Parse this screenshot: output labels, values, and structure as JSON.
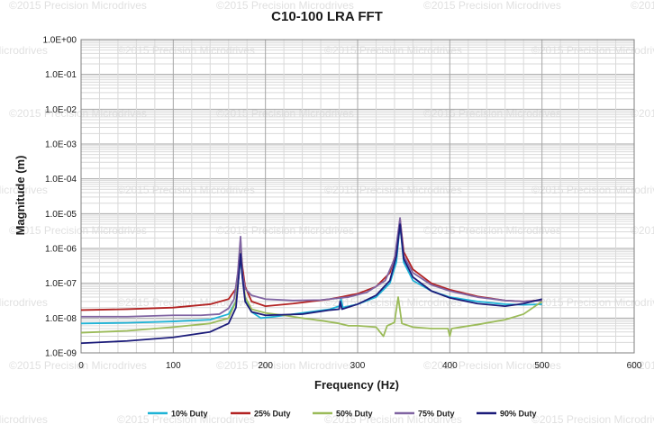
{
  "chart_data": {
    "type": "line",
    "title": "C10-100 LRA FFT",
    "xlabel": "Frequency (Hz)",
    "ylabel": "Magnitude (m)",
    "xlim": [
      0,
      600
    ],
    "ylim": [
      1e-09,
      1
    ],
    "yscale": "log",
    "grid": true,
    "legend_position": "bottom",
    "x_ticks": [
      "0",
      "100",
      "200",
      "300",
      "400",
      "500",
      "600"
    ],
    "y_ticks": [
      "1.0E-09",
      "1.0E-08",
      "1.0E-07",
      "1.0E-06",
      "1.0E-05",
      "1.0E-04",
      "1.0E-03",
      "1.0E-02",
      "1.0E-01",
      "1.0E+00"
    ],
    "watermark": "©2015 Precision Microdrives",
    "series": [
      {
        "name": "10% Duty",
        "color": "#1fb3d6",
        "points": [
          [
            0,
            7e-09
          ],
          [
            50,
            7.3e-09
          ],
          [
            100,
            8e-09
          ],
          [
            140,
            9e-09
          ],
          [
            160,
            1.3e-08
          ],
          [
            168,
            3e-08
          ],
          [
            171,
            1.5e-07
          ],
          [
            173,
            6e-07
          ],
          [
            175,
            1.5e-07
          ],
          [
            178,
            3.5e-08
          ],
          [
            185,
            1.5e-08
          ],
          [
            195,
            1e-08
          ],
          [
            210,
            1.1e-08
          ],
          [
            240,
            1.4e-08
          ],
          [
            270,
            1.8e-08
          ],
          [
            280,
            2.2e-08
          ],
          [
            282,
            3.5e-08
          ],
          [
            284,
            2e-08
          ],
          [
            300,
            2.5e-08
          ],
          [
            320,
            4e-08
          ],
          [
            335,
            1e-07
          ],
          [
            342,
            4e-07
          ],
          [
            346,
            5e-06
          ],
          [
            350,
            4e-07
          ],
          [
            360,
            1.2e-07
          ],
          [
            380,
            6e-08
          ],
          [
            400,
            4e-08
          ],
          [
            430,
            3e-08
          ],
          [
            460,
            2.5e-08
          ],
          [
            480,
            2.4e-08
          ],
          [
            500,
            2.5e-08
          ]
        ]
      },
      {
        "name": "25% Duty",
        "color": "#b22222",
        "points": [
          [
            0,
            1.7e-08
          ],
          [
            50,
            1.8e-08
          ],
          [
            100,
            2e-08
          ],
          [
            140,
            2.5e-08
          ],
          [
            160,
            3.5e-08
          ],
          [
            168,
            7e-08
          ],
          [
            171,
            3e-07
          ],
          [
            173,
            1.2e-06
          ],
          [
            175,
            3e-07
          ],
          [
            178,
            8e-08
          ],
          [
            185,
            3e-08
          ],
          [
            200,
            2.2e-08
          ],
          [
            230,
            2.6e-08
          ],
          [
            270,
            3.5e-08
          ],
          [
            300,
            5e-08
          ],
          [
            320,
            8e-08
          ],
          [
            335,
            2e-07
          ],
          [
            342,
            8e-07
          ],
          [
            346,
            7e-06
          ],
          [
            350,
            8e-07
          ],
          [
            360,
            2.5e-07
          ],
          [
            380,
            1e-07
          ],
          [
            400,
            6.5e-08
          ],
          [
            430,
            4.2e-08
          ],
          [
            460,
            3.2e-08
          ],
          [
            480,
            3e-08
          ],
          [
            500,
            3.3e-08
          ]
        ]
      },
      {
        "name": "50% Duty",
        "color": "#9bbb59",
        "points": [
          [
            0,
            3.8e-09
          ],
          [
            50,
            4.3e-09
          ],
          [
            100,
            5.5e-09
          ],
          [
            140,
            7e-09
          ],
          [
            160,
            1e-08
          ],
          [
            168,
            3e-08
          ],
          [
            171,
            2e-07
          ],
          [
            173,
            1.8e-06
          ],
          [
            175,
            2e-07
          ],
          [
            178,
            4e-08
          ],
          [
            185,
            1.8e-08
          ],
          [
            200,
            1.4e-08
          ],
          [
            220,
            1.2e-08
          ],
          [
            240,
            1e-08
          ],
          [
            260,
            8.5e-09
          ],
          [
            280,
            7e-09
          ],
          [
            290,
            6e-09
          ],
          [
            300,
            6e-09
          ],
          [
            320,
            5.5e-09
          ],
          [
            328,
            3e-09
          ],
          [
            332,
            6e-09
          ],
          [
            340,
            7.5e-09
          ],
          [
            344,
            4e-08
          ],
          [
            348,
            7e-09
          ],
          [
            360,
            5.5e-09
          ],
          [
            380,
            5e-09
          ],
          [
            398,
            5e-09
          ],
          [
            400,
            3e-09
          ],
          [
            402,
            5e-09
          ],
          [
            430,
            6.5e-09
          ],
          [
            460,
            9e-09
          ],
          [
            480,
            1.3e-08
          ],
          [
            500,
            3e-08
          ]
        ]
      },
      {
        "name": "75% Duty",
        "color": "#8064a2",
        "points": [
          [
            0,
            1.1e-08
          ],
          [
            50,
            1.1e-08
          ],
          [
            100,
            1.2e-08
          ],
          [
            130,
            1.2e-08
          ],
          [
            150,
            1.3e-08
          ],
          [
            160,
            1.9e-08
          ],
          [
            166,
            3.5e-08
          ],
          [
            170,
            2e-07
          ],
          [
            173,
            2.2e-06
          ],
          [
            175,
            2e-07
          ],
          [
            178,
            7e-08
          ],
          [
            185,
            4.5e-08
          ],
          [
            200,
            3.5e-08
          ],
          [
            230,
            3.2e-08
          ],
          [
            260,
            3.3e-08
          ],
          [
            290,
            4e-08
          ],
          [
            310,
            5.5e-08
          ],
          [
            330,
            1.2e-07
          ],
          [
            340,
            5e-07
          ],
          [
            346,
            7.5e-06
          ],
          [
            350,
            6e-07
          ],
          [
            360,
            2e-07
          ],
          [
            380,
            9e-08
          ],
          [
            400,
            6e-08
          ],
          [
            430,
            4e-08
          ],
          [
            460,
            3.2e-08
          ],
          [
            480,
            3e-08
          ],
          [
            500,
            3.2e-08
          ]
        ]
      },
      {
        "name": "90% Duty",
        "color": "#1c1c7a",
        "points": [
          [
            0,
            1.9e-09
          ],
          [
            50,
            2.2e-09
          ],
          [
            100,
            2.8e-09
          ],
          [
            140,
            4e-09
          ],
          [
            160,
            7e-09
          ],
          [
            168,
            2e-08
          ],
          [
            171,
            1.5e-07
          ],
          [
            173,
            7e-07
          ],
          [
            175,
            1.5e-07
          ],
          [
            178,
            3e-08
          ],
          [
            185,
            1.5e-08
          ],
          [
            200,
            1.2e-08
          ],
          [
            240,
            1.3e-08
          ],
          [
            270,
            1.7e-08
          ],
          [
            280,
            1.8e-08
          ],
          [
            281,
            3e-08
          ],
          [
            283,
            1.8e-08
          ],
          [
            300,
            2.5e-08
          ],
          [
            320,
            4.5e-08
          ],
          [
            335,
            1.2e-07
          ],
          [
            342,
            6e-07
          ],
          [
            346,
            5e-06
          ],
          [
            350,
            5e-07
          ],
          [
            360,
            1.5e-07
          ],
          [
            380,
            6e-08
          ],
          [
            400,
            3.8e-08
          ],
          [
            430,
            2.6e-08
          ],
          [
            460,
            2.2e-08
          ],
          [
            480,
            2.6e-08
          ],
          [
            500,
            3.5e-08
          ]
        ]
      }
    ]
  }
}
